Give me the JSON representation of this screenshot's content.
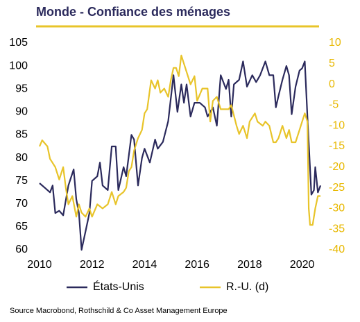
{
  "chart_data": {
    "type": "line",
    "title": "Monde - Confiance des ménages",
    "source": "Source Macrobond, Rothschild & Co Asset Management Europe",
    "xlim": [
      2010,
      2020.75
    ],
    "xticks": [
      2010,
      2012,
      2014,
      2016,
      2018,
      2020
    ],
    "ylim": [
      60,
      105
    ],
    "yticks": [
      60,
      65,
      70,
      75,
      80,
      85,
      90,
      95,
      100,
      105
    ],
    "y2lim": [
      -40,
      10
    ],
    "y2ticks": [
      -40,
      -35,
      -30,
      -25,
      -20,
      -15,
      -10,
      -5,
      0,
      5,
      10
    ],
    "series": [
      {
        "name": "États-Unis",
        "color": "#2b2a5c",
        "x": [
          2010.0,
          2010.2,
          2010.4,
          2010.5,
          2010.6,
          2010.75,
          2010.9,
          2011.1,
          2011.3,
          2011.4,
          2011.5,
          2011.6,
          2011.75,
          2011.9,
          2012.0,
          2012.2,
          2012.3,
          2012.4,
          2012.6,
          2012.75,
          2012.9,
          2013.0,
          2013.2,
          2013.3,
          2013.5,
          2013.6,
          2013.75,
          2013.9,
          2014.0,
          2014.2,
          2014.4,
          2014.5,
          2014.7,
          2014.9,
          2015.0,
          2015.1,
          2015.25,
          2015.4,
          2015.5,
          2015.6,
          2015.75,
          2015.9,
          2016.1,
          2016.3,
          2016.4,
          2016.6,
          2016.75,
          2016.9,
          2017.1,
          2017.2,
          2017.3,
          2017.4,
          2017.6,
          2017.75,
          2017.9,
          2018.1,
          2018.25,
          2018.4,
          2018.6,
          2018.75,
          2018.9,
          2019.0,
          2019.1,
          2019.25,
          2019.4,
          2019.5,
          2019.6,
          2019.75,
          2019.9,
          2020.0,
          2020.1,
          2020.2,
          2020.35,
          2020.45,
          2020.5,
          2020.6,
          2020.7
        ],
        "values": [
          74.5,
          73.5,
          72.5,
          74,
          68,
          68.5,
          67.5,
          74,
          77.5,
          71,
          68,
          60,
          64,
          68,
          75,
          76,
          79,
          74,
          73,
          82.5,
          82.5,
          73,
          78,
          76,
          85,
          84,
          74,
          80,
          82,
          79,
          84,
          82,
          83.5,
          88,
          93,
          98,
          90,
          96,
          92,
          96,
          89,
          92,
          92,
          91,
          89,
          91,
          87,
          98,
          95,
          97,
          89,
          96,
          97,
          101,
          95.5,
          98,
          96.5,
          98,
          101,
          98,
          98,
          91,
          93.5,
          97,
          100,
          98,
          89.5,
          95.5,
          99,
          99.5,
          101,
          89,
          72,
          73,
          78,
          72.5,
          74
        ]
      },
      {
        "name": "R.-U. (d)",
        "color": "#e8c42a",
        "axis": "y2",
        "x": [
          2010.0,
          2010.1,
          2010.3,
          2010.4,
          2010.5,
          2010.6,
          2010.75,
          2010.9,
          2011.0,
          2011.1,
          2011.25,
          2011.4,
          2011.5,
          2011.6,
          2011.75,
          2011.9,
          2012.0,
          2012.2,
          2012.4,
          2012.6,
          2012.75,
          2012.9,
          2013.0,
          2013.2,
          2013.3,
          2013.4,
          2013.5,
          2013.6,
          2013.75,
          2013.9,
          2014.0,
          2014.1,
          2014.25,
          2014.4,
          2014.5,
          2014.6,
          2014.75,
          2014.9,
          2015.0,
          2015.1,
          2015.2,
          2015.3,
          2015.4,
          2015.5,
          2015.6,
          2015.75,
          2015.9,
          2016.0,
          2016.2,
          2016.4,
          2016.5,
          2016.6,
          2016.75,
          2016.9,
          2017.0,
          2017.2,
          2017.3,
          2017.5,
          2017.6,
          2017.75,
          2017.9,
          2018.0,
          2018.2,
          2018.3,
          2018.5,
          2018.6,
          2018.75,
          2018.9,
          2019.0,
          2019.1,
          2019.25,
          2019.4,
          2019.5,
          2019.6,
          2019.75,
          2019.9,
          2020.0,
          2020.1,
          2020.2,
          2020.25,
          2020.3,
          2020.4,
          2020.5,
          2020.6,
          2020.7
        ],
        "values": [
          -15,
          -13.5,
          -15,
          -18,
          -19,
          -20,
          -23,
          -20,
          -25,
          -29,
          -27,
          -32,
          -29,
          -31,
          -32,
          -30,
          -32,
          -29,
          -30,
          -29,
          -26,
          -29,
          -27,
          -26,
          -25,
          -21,
          -20,
          -16,
          -13,
          -11,
          -7,
          -6,
          1,
          -1,
          1,
          -2,
          -1,
          -3,
          1,
          4,
          4,
          2,
          7,
          5,
          3,
          0,
          2,
          -4,
          -1,
          -1,
          -9,
          -4,
          -3,
          -6,
          -6,
          -6,
          -5,
          -10,
          -12,
          -10,
          -13,
          -9,
          -7,
          -9,
          -10,
          -9,
          -10,
          -14,
          -14,
          -13,
          -10,
          -13,
          -11,
          -14,
          -14,
          -11,
          -9,
          -7,
          -9,
          -30,
          -34,
          -34,
          -30,
          -27,
          -27
        ]
      }
    ]
  }
}
